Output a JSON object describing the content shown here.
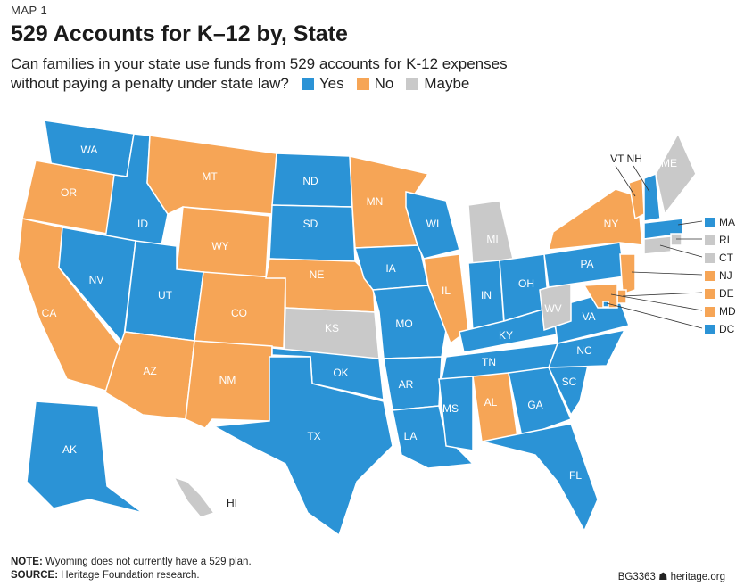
{
  "header": {
    "kicker": "MAP 1",
    "title": "529 Accounts for K–12 by, State",
    "subtitle_line1": "Can families in your state use funds from 529 accounts for K-12 expenses",
    "subtitle_line2": "without paying a penalty under state law?"
  },
  "legend": [
    {
      "label": "Yes",
      "color": "#2b93d6"
    },
    {
      "label": "No",
      "color": "#f6a556"
    },
    {
      "label": "Maybe",
      "color": "#c9c9c9"
    }
  ],
  "colors": {
    "yes": "#2b93d6",
    "no": "#f6a556",
    "maybe": "#c9c9c9"
  },
  "states": {
    "WA": "yes",
    "OR": "no",
    "CA": "no",
    "ID": "yes",
    "NV": "yes",
    "MT": "no",
    "WY": "no",
    "UT": "yes",
    "AZ": "no",
    "CO": "no",
    "NM": "no",
    "ND": "yes",
    "SD": "yes",
    "NE": "no",
    "KS": "maybe",
    "OK": "yes",
    "TX": "yes",
    "MN": "no",
    "IA": "yes",
    "MO": "yes",
    "AR": "yes",
    "LA": "yes",
    "WI": "yes",
    "IL": "no",
    "MI": "maybe",
    "IN": "yes",
    "OH": "yes",
    "KY": "yes",
    "TN": "yes",
    "MS": "yes",
    "AL": "no",
    "GA": "yes",
    "FL": "yes",
    "SC": "yes",
    "NC": "yes",
    "VA": "yes",
    "WV": "maybe",
    "PA": "yes",
    "NY": "no",
    "VT": "no",
    "NH": "yes",
    "ME": "maybe",
    "MA": "yes",
    "RI": "maybe",
    "CT": "maybe",
    "NJ": "no",
    "DE": "no",
    "MD": "no",
    "DC": "yes",
    "AK": "yes",
    "HI": "maybe"
  },
  "state_labels": [
    "WA",
    "OR",
    "CA",
    "ID",
    "NV",
    "MT",
    "WY",
    "UT",
    "AZ",
    "CO",
    "NM",
    "ND",
    "SD",
    "NE",
    "KS",
    "OK",
    "TX",
    "MN",
    "IA",
    "MO",
    "AR",
    "LA",
    "WI",
    "IL",
    "MI",
    "IN",
    "OH",
    "KY",
    "TN",
    "MS",
    "AL",
    "GA",
    "FL",
    "SC",
    "NC",
    "VA",
    "WV",
    "PA",
    "NY",
    "ME",
    "AK",
    "HI"
  ],
  "small_states": [
    "MA",
    "RI",
    "CT",
    "NJ",
    "DE",
    "MD",
    "DC"
  ],
  "top_labels": {
    "vt_nh": "VT NH"
  },
  "footer": {
    "note_label": "NOTE:",
    "note_text": " Wyoming does not currently have a 529 plan.",
    "source_label": "SOURCE:",
    "source_text": " Heritage Foundation research.",
    "credit": "BG3363  ☗ heritage.org"
  }
}
